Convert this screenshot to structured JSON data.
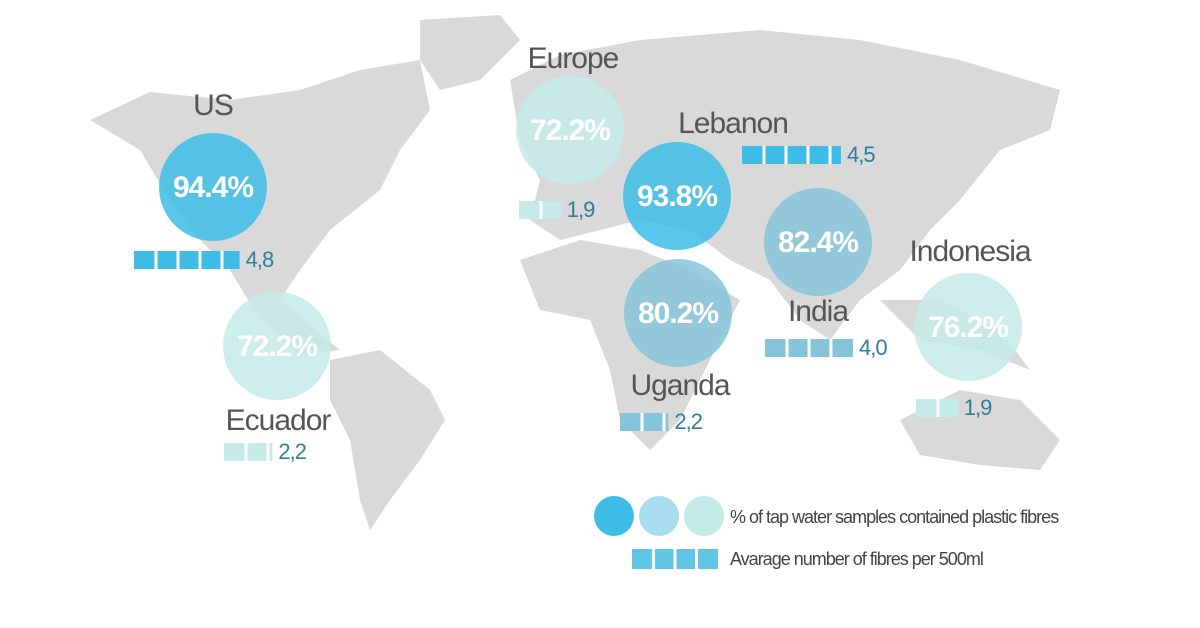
{
  "regions": [
    {
      "name": "US",
      "percent": 94.4,
      "percent_label": "94.4%",
      "fibres": 4.8,
      "fibres_label": "4,8",
      "color": "#3dbde6"
    },
    {
      "name": "Europe",
      "percent": 72.2,
      "percent_label": "72.2%",
      "fibres": 1.9,
      "fibres_label": "1,9",
      "color": "#c4ebe8"
    },
    {
      "name": "Lebanon",
      "percent": 93.8,
      "percent_label": "93.8%",
      "fibres": 4.5,
      "fibres_label": "4,5",
      "color": "#3dbde6"
    },
    {
      "name": "India",
      "percent": 82.4,
      "percent_label": "82.4%",
      "fibres": 4.0,
      "fibres_label": "4,0",
      "color": "#86c4db"
    },
    {
      "name": "Uganda",
      "percent": 80.2,
      "percent_label": "80.2%",
      "fibres": 2.2,
      "fibres_label": "2,2",
      "color": "#86c4db"
    },
    {
      "name": "Ecuador",
      "percent": 72.2,
      "percent_label": "72.2%",
      "fibres": 2.2,
      "fibres_label": "2,2",
      "color": "#c4ebe8"
    },
    {
      "name": "Indonesia",
      "percent": 76.2,
      "percent_label": "76.2%",
      "fibres": 1.9,
      "fibres_label": "1,9",
      "color": "#c4ebe8"
    }
  ],
  "legend": {
    "circles_label": "% of tap water samples  contained plastic fibres",
    "circle_colors": [
      "#3dbde6",
      "#a8dcef",
      "#c4ebe8"
    ],
    "bars_label": "Avarage number of fibres per 500ml",
    "bar_color": "#5fc6e6"
  }
}
